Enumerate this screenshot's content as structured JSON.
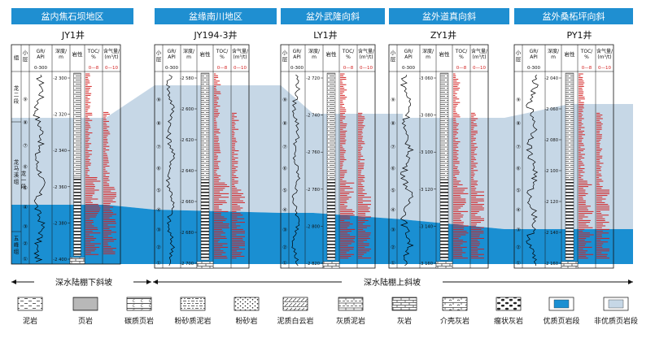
{
  "colors": {
    "header_bg": "#1f8fd1",
    "header_text": "#ffffff",
    "quality_shale": "#1a8fd2",
    "non_quality_shale": "#c6d7e6",
    "toc_curve": "#d32020",
    "gas_curve": "#d32020",
    "gr_curve": "#000000"
  },
  "regions": [
    {
      "name": "盆内焦石坝地区"
    },
    {
      "name": "盆缘南川地区"
    },
    {
      "name": "盆外武隆向斜"
    },
    {
      "name": "盆外道真向斜"
    },
    {
      "name": "盆外桑柘坪向斜"
    }
  ],
  "wells": [
    {
      "name": "JY1井",
      "has_formation_cols": true,
      "formation_header": "组",
      "layer_header": "小层",
      "gr_header": "GR/\nAPI",
      "gr_scale": "0-300",
      "depth_header": "深度/\nm",
      "lith_header": "岩性",
      "toc_header": "TOC/\n%",
      "toc_scale": "0—8",
      "gas_header": "含气量/\n(m³/t)",
      "gas_scale": "0—10",
      "formations": [
        {
          "label": "龙二段"
        },
        {
          "label": "龙马溪组"
        },
        {
          "label": "龙一段"
        },
        {
          "label": "五峰组"
        }
      ],
      "layers": [
        "⑨",
        "⑧",
        "⑦",
        "⑥",
        "⑤",
        "④",
        "③",
        "②",
        "①"
      ],
      "depths": [
        "2 300",
        "2 320",
        "2 340",
        "2 360",
        "2 380",
        "2 400"
      ]
    },
    {
      "name": "JY194-3井",
      "has_formation_cols": false,
      "layer_header": "小层",
      "gr_header": "GR/\nAPI",
      "gr_scale": "0-300",
      "depth_header": "深度/\nm",
      "lith_header": "岩性",
      "toc_header": "TOC/\n%",
      "toc_scale": "0—8",
      "gas_header": "含气量/\n(m³/t)",
      "gas_scale": "0—10",
      "layers": [
        "⑨",
        "⑧",
        "⑦",
        "⑥",
        "⑤",
        "④",
        "③",
        "②",
        "①"
      ],
      "depths": [
        "2 580",
        "2 600",
        "2 620",
        "2 640",
        "2 660",
        "2 680",
        "2 700"
      ]
    },
    {
      "name": "LY1井",
      "has_formation_cols": false,
      "layer_header": "小层",
      "gr_header": "GR/\nAPI",
      "gr_scale": "0-300",
      "depth_header": "深度/\nm",
      "lith_header": "岩性",
      "toc_header": "TOC/\n%",
      "toc_scale": "0—8",
      "gas_header": "含气量/\n(m³/t)",
      "gas_scale": "0—10",
      "layers": [
        "⑨",
        "⑧",
        "⑦",
        "⑥",
        "⑤",
        "④",
        "③",
        "②",
        "①"
      ],
      "depths": [
        "2 720",
        "2 740",
        "2 760",
        "2 780",
        "2 800",
        "2 820"
      ]
    },
    {
      "name": "ZY1井",
      "has_formation_cols": false,
      "layer_header": "小层",
      "gr_header": "GR/\nAPI",
      "gr_scale": "0-300",
      "depth_header": "深度/\nm",
      "lith_header": "岩性",
      "toc_header": "TOC/\n%",
      "toc_scale": "0—8",
      "gas_header": "含气量/\n(m³/t)",
      "gas_scale": "0—10",
      "layers": [
        "⑨",
        "⑧",
        "⑦",
        "⑥",
        "⑤",
        "④",
        "③",
        "②",
        "①"
      ],
      "depths": [
        "3 060",
        "3 080",
        "3 100",
        "3 120",
        "3 140",
        "3 160"
      ]
    },
    {
      "name": "PY1井",
      "has_formation_cols": false,
      "layer_header": "小层",
      "gr_header": "GR/\nAPI",
      "gr_scale": "0-300",
      "depth_header": "深度/\nm",
      "lith_header": "岩性",
      "toc_header": "TOC/\n%",
      "toc_scale": "0—8",
      "gas_header": "含气量/\n(m³/t)",
      "gas_scale": "0—10",
      "layers": [
        "⑨",
        "⑧",
        "⑦",
        "⑥",
        "⑤",
        "④",
        "③",
        "②",
        "①"
      ],
      "depths": [
        "2 040",
        "2 060",
        "2 080",
        "2 100",
        "2 120",
        "2 140",
        "2 160"
      ]
    }
  ],
  "facies": [
    {
      "label": "深水陆棚下斜坡"
    },
    {
      "label": "深水陆棚上斜坡"
    }
  ],
  "legend": [
    {
      "label": "泥岩",
      "pattern": "mudstone"
    },
    {
      "label": "页岩",
      "pattern": "shale"
    },
    {
      "label": "碳质页岩",
      "pattern": "carbshale"
    },
    {
      "label": "粉砂质泥岩",
      "pattern": "siltmud"
    },
    {
      "label": "粉砂岩",
      "pattern": "silt"
    },
    {
      "label": "泥质白云岩",
      "pattern": "dolomud"
    },
    {
      "label": "灰质泥岩",
      "pattern": "limemud"
    },
    {
      "label": "灰岩",
      "pattern": "limestone"
    },
    {
      "label": "介壳灰岩",
      "pattern": "shelllime"
    },
    {
      "label": "瘤状灰岩",
      "pattern": "nodular"
    },
    {
      "label": "优质页岩段",
      "pattern": "quality"
    },
    {
      "label": "非优质页岩段",
      "pattern": "nonquality"
    }
  ]
}
